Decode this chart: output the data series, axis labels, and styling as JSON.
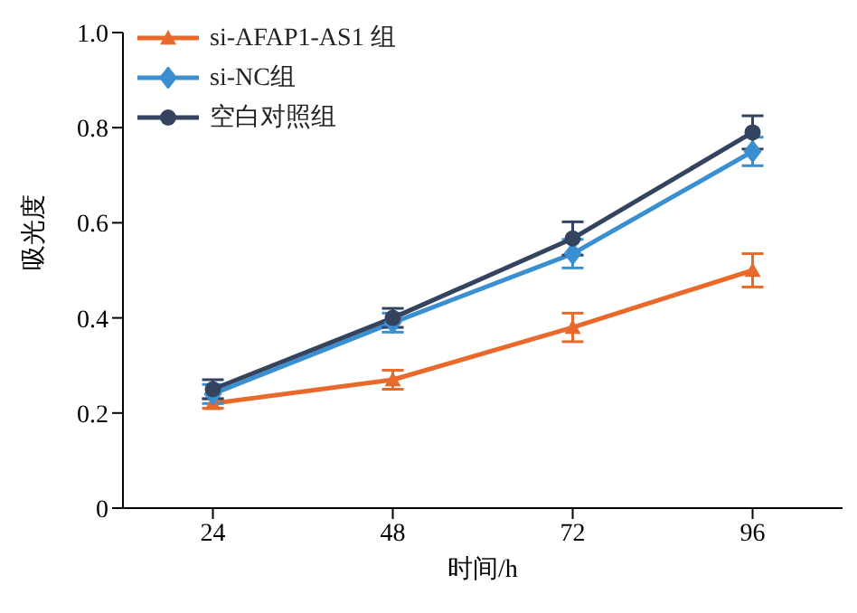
{
  "chart_data": {
    "type": "line",
    "xlabel": "时间/h",
    "ylabel": "吸光度",
    "x": [
      24,
      48,
      72,
      96
    ],
    "xlim": [
      12,
      108
    ],
    "xticks": [
      24,
      48,
      72,
      96
    ],
    "ylim": [
      0,
      1
    ],
    "yticks": [
      0,
      0.2,
      0.4,
      0.6,
      0.8,
      {
        "value": 1,
        "label": "1.0"
      }
    ],
    "grid": false,
    "legend": "top left",
    "series": [
      {
        "name": "si-AFAP1-AS1 组",
        "color": "#e8692a",
        "marker": "triangle",
        "values": [
          0.22,
          0.27,
          0.38,
          0.5
        ],
        "errors": [
          0.01,
          0.02,
          0.03,
          0.035
        ]
      },
      {
        "name": "si-NC组",
        "color": "#3a8fd0",
        "marker": "diamond",
        "values": [
          0.24,
          0.39,
          0.535,
          0.75
        ],
        "errors": [
          0.02,
          0.02,
          0.03,
          0.03
        ]
      },
      {
        "name": "空白对照组",
        "color": "#34435e",
        "marker": "circle",
        "values": [
          0.25,
          0.4,
          0.567,
          0.79
        ],
        "errors": [
          0.02,
          0.02,
          0.035,
          0.035
        ]
      }
    ]
  }
}
